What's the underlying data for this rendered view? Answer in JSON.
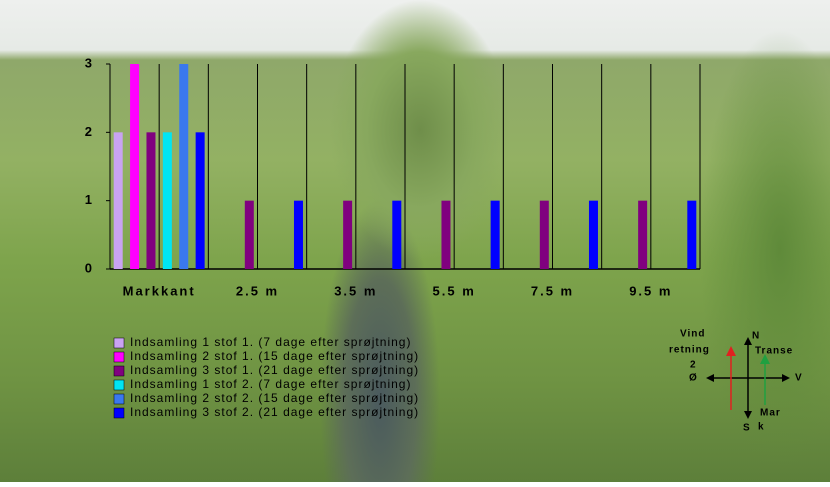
{
  "chart_data": {
    "type": "bar",
    "categories": [
      "Markkant",
      "2.5 m",
      "3.5 m",
      "5.5 m",
      "7.5 m",
      "9.5 m"
    ],
    "series": [
      {
        "name": "Indsamling 1 stof 1. (7 dage efter sprøjtning)",
        "color": "#c9a3f2",
        "values": [
          2,
          0,
          0,
          0,
          0,
          0
        ]
      },
      {
        "name": "Indsamling 2 stof 1. (15 dage efter sprøjtning)",
        "color": "#ff00ff",
        "values": [
          3,
          0,
          0,
          0,
          0,
          0
        ]
      },
      {
        "name": "Indsamling 3 stof 1. (21 dage efter sprøjtning)",
        "color": "#80007f",
        "values": [
          2,
          1,
          1,
          1,
          1,
          1
        ]
      },
      {
        "name": "Indsamling 1 stof 2. (7 dage efter sprøjtning)",
        "color": "#00e5f2",
        "values": [
          2,
          0,
          0,
          0,
          0,
          0
        ]
      },
      {
        "name": "Indsamling 2 stof 2. (15 dage efter sprøjtning)",
        "color": "#3a78ee",
        "values": [
          3,
          0,
          0,
          0,
          0,
          0
        ]
      },
      {
        "name": "Indsamling 3 stof 2. (21 dage efter sprøjtning)",
        "color": "#0000ff",
        "values": [
          2,
          1,
          1,
          1,
          1,
          1
        ]
      }
    ],
    "ylim": [
      0,
      3
    ],
    "yticks": [
      0,
      1,
      2,
      3
    ],
    "compass": {
      "wind_1": "Vind",
      "wind_2": "retning",
      "north": "N",
      "transect_1": "Transe",
      "transect_2": "2",
      "east": "Ø",
      "west": "V",
      "south": "S",
      "field_1": "Mar",
      "field_2": "k"
    }
  }
}
